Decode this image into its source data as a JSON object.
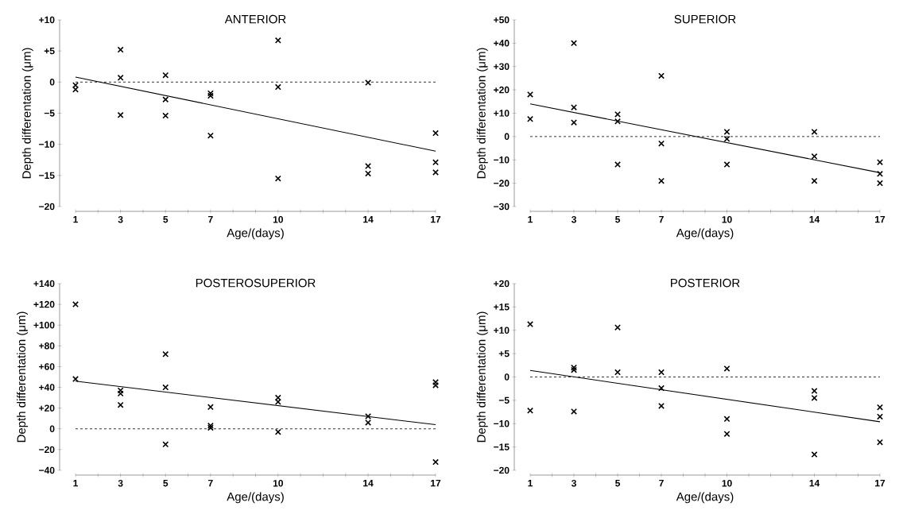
{
  "chart_data": [
    {
      "type": "scatter",
      "title": "ANTERIOR",
      "xlabel": "Age/(days)",
      "ylabel": "Depth differentation (μm)",
      "grid": false,
      "xlim": [
        1,
        17
      ],
      "xticks": [
        1,
        {
          "value": 2,
          "label": null
        },
        3,
        {
          "value": 4,
          "label": null
        },
        5,
        {
          "value": 6,
          "label": null
        },
        7,
        {
          "value": 8,
          "label": null
        },
        {
          "value": 9,
          "label": null
        },
        10,
        {
          "value": 11,
          "label": null
        },
        {
          "value": 12,
          "label": null
        },
        {
          "value": 13,
          "label": null
        },
        14,
        {
          "value": 15,
          "label": null
        },
        {
          "value": 16,
          "label": null
        },
        17
      ],
      "ylim": [
        -20,
        10
      ],
      "yticks": [
        {
          "value": -20,
          "label": "−20"
        },
        {
          "value": -15,
          "label": "−15"
        },
        {
          "value": -10,
          "label": "−10"
        },
        {
          "value": -5,
          "label": "−5"
        },
        0,
        {
          "value": 5,
          "label": "+5"
        },
        {
          "value": 10,
          "label": "+10"
        }
      ],
      "ref_lines": [
        {
          "axis": "y",
          "value": 0,
          "line_style": "dashed"
        }
      ],
      "series": [
        {
          "marker": "cross",
          "color": "#000000",
          "x": [
            1,
            1,
            3,
            3,
            3,
            5,
            5,
            5,
            7,
            7,
            7,
            10,
            10,
            10,
            14,
            14,
            14,
            17,
            17,
            17
          ],
          "values": [
            -0.5,
            -1.2,
            5.2,
            0.7,
            -5.3,
            1.1,
            -2.8,
            -5.4,
            -1.8,
            -2.2,
            -8.6,
            6.7,
            -0.8,
            -15.5,
            -0.1,
            -13.5,
            -14.7,
            -8.2,
            -12.9,
            -14.5
          ]
        },
        {
          "type": "line",
          "color": "#000000",
          "x": [
            1,
            17
          ],
          "values": [
            0.8,
            -11.1
          ]
        }
      ]
    },
    {
      "type": "scatter",
      "title": "SUPERIOR",
      "xlabel": "Age/(days)",
      "ylabel": "Depth differentation (μm)",
      "grid": false,
      "xlim": [
        1,
        17
      ],
      "xticks": [
        1,
        {
          "value": 2,
          "label": null
        },
        3,
        {
          "value": 4,
          "label": null
        },
        5,
        {
          "value": 6,
          "label": null
        },
        7,
        {
          "value": 8,
          "label": null
        },
        {
          "value": 9,
          "label": null
        },
        10,
        {
          "value": 11,
          "label": null
        },
        {
          "value": 12,
          "label": null
        },
        {
          "value": 13,
          "label": null
        },
        14,
        {
          "value": 15,
          "label": null
        },
        {
          "value": 16,
          "label": null
        },
        17
      ],
      "ylim": [
        -30,
        50
      ],
      "yticks": [
        {
          "value": -30,
          "label": "−30"
        },
        {
          "value": -20,
          "label": "−20"
        },
        {
          "value": -10,
          "label": "−10"
        },
        0,
        {
          "value": 10,
          "label": "+10"
        },
        {
          "value": 20,
          "label": "+20"
        },
        {
          "value": 30,
          "label": "+30"
        },
        {
          "value": 40,
          "label": "+40"
        },
        {
          "value": 50,
          "label": "+50"
        }
      ],
      "ref_lines": [
        {
          "axis": "y",
          "value": 0,
          "line_style": "dashed"
        }
      ],
      "series": [
        {
          "marker": "cross",
          "color": "#000000",
          "x": [
            1,
            1,
            3,
            3,
            3,
            5,
            5,
            5,
            7,
            7,
            7,
            10,
            10,
            10,
            14,
            14,
            14,
            17,
            17,
            17
          ],
          "values": [
            18,
            7.5,
            40,
            12.5,
            6,
            9.5,
            6.5,
            -12,
            26,
            -3,
            -19,
            2,
            -1,
            -12,
            2,
            -8.5,
            -19,
            -11,
            -16,
            -20
          ]
        },
        {
          "type": "line",
          "color": "#000000",
          "x": [
            1,
            17
          ],
          "values": [
            14,
            -15.5
          ]
        }
      ]
    },
    {
      "type": "scatter",
      "title": "POSTEROSUPERIOR",
      "xlabel": "Age/(days)",
      "ylabel": "Depth differentation (μm)",
      "grid": false,
      "xlim": [
        1,
        17
      ],
      "xticks": [
        1,
        {
          "value": 2,
          "label": null
        },
        3,
        {
          "value": 4,
          "label": null
        },
        5,
        {
          "value": 6,
          "label": null
        },
        7,
        {
          "value": 8,
          "label": null
        },
        {
          "value": 9,
          "label": null
        },
        10,
        {
          "value": 11,
          "label": null
        },
        {
          "value": 12,
          "label": null
        },
        {
          "value": 13,
          "label": null
        },
        14,
        {
          "value": 15,
          "label": null
        },
        {
          "value": 16,
          "label": null
        },
        17
      ],
      "ylim": [
        -40,
        140
      ],
      "yticks": [
        {
          "value": -40,
          "label": "−40"
        },
        {
          "value": -20,
          "label": "−20"
        },
        0,
        {
          "value": 20,
          "label": "+20"
        },
        {
          "value": 40,
          "label": "+40"
        },
        {
          "value": 60,
          "label": "+60"
        },
        {
          "value": 80,
          "label": "+80"
        },
        {
          "value": 100,
          "label": "+100"
        },
        {
          "value": 120,
          "label": "+120"
        },
        {
          "value": 140,
          "label": "+140"
        }
      ],
      "ref_lines": [
        {
          "axis": "y",
          "value": 0,
          "line_style": "dashed"
        }
      ],
      "series": [
        {
          "marker": "cross",
          "color": "#000000",
          "x": [
            1,
            1,
            3,
            3,
            3,
            5,
            5,
            5,
            7,
            7,
            7,
            10,
            10,
            10,
            14,
            14,
            17,
            17,
            17
          ],
          "values": [
            120,
            48,
            37,
            34,
            23,
            72,
            40,
            -15,
            21,
            3,
            1,
            30,
            26,
            -3,
            12,
            6,
            45,
            42,
            -32
          ]
        },
        {
          "type": "line",
          "color": "#000000",
          "x": [
            1,
            17
          ],
          "values": [
            46,
            4
          ]
        }
      ]
    },
    {
      "type": "scatter",
      "title": "POSTERIOR",
      "xlabel": "Age/(days)",
      "ylabel": "Depth differentation (μm)",
      "grid": false,
      "xlim": [
        1,
        17
      ],
      "xticks": [
        1,
        {
          "value": 2,
          "label": null
        },
        3,
        {
          "value": 4,
          "label": null
        },
        5,
        {
          "value": 6,
          "label": null
        },
        7,
        {
          "value": 8,
          "label": null
        },
        {
          "value": 9,
          "label": null
        },
        10,
        {
          "value": 11,
          "label": null
        },
        {
          "value": 12,
          "label": null
        },
        {
          "value": 13,
          "label": null
        },
        14,
        {
          "value": 15,
          "label": null
        },
        {
          "value": 16,
          "label": null
        },
        17
      ],
      "ylim": [
        -20,
        20
      ],
      "yticks": [
        {
          "value": -20,
          "label": "−20"
        },
        {
          "value": -15,
          "label": "−15"
        },
        {
          "value": -10,
          "label": "−10"
        },
        {
          "value": -5,
          "label": "−5"
        },
        0,
        {
          "value": 5,
          "label": "+5"
        },
        {
          "value": 10,
          "label": "+10"
        },
        {
          "value": 15,
          "label": "+15"
        },
        {
          "value": 20,
          "label": "+20"
        }
      ],
      "ref_lines": [
        {
          "axis": "y",
          "value": 0,
          "line_style": "dashed"
        }
      ],
      "series": [
        {
          "marker": "cross",
          "color": "#000000",
          "x": [
            1,
            1,
            3,
            3,
            3,
            5,
            5,
            7,
            7,
            7,
            10,
            10,
            10,
            14,
            14,
            14,
            17,
            17,
            17
          ],
          "values": [
            11.3,
            -7.2,
            2,
            1.5,
            -7.4,
            10.6,
            1,
            1,
            -2.4,
            -6.2,
            1.8,
            -9,
            -12.2,
            -3,
            -4.5,
            -16.6,
            -6.5,
            -8.5,
            -14
          ]
        },
        {
          "type": "line",
          "color": "#000000",
          "x": [
            1,
            17
          ],
          "values": [
            1.4,
            -9.6
          ]
        }
      ]
    }
  ]
}
